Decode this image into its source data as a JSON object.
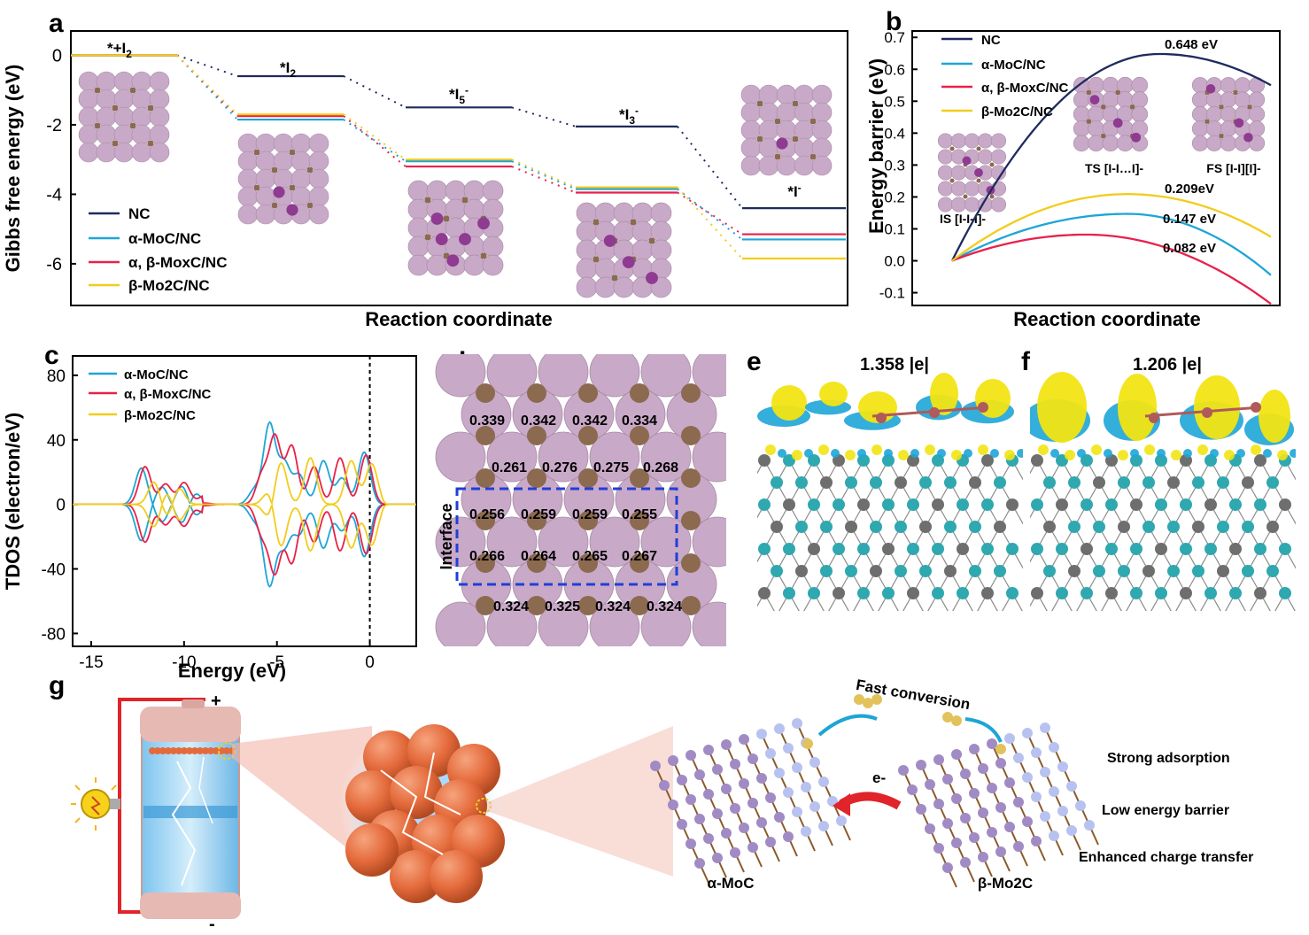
{
  "panels": {
    "a": "a",
    "b": "b",
    "c": "c",
    "d": "d",
    "e": "e",
    "f": "f",
    "g": "g"
  },
  "colors": {
    "NC": "#1f2a5e",
    "aMoC": "#1ea5d6",
    "mix": "#e8214a",
    "bMo2C": "#f2cc1c",
    "mo": "#c9a9c8",
    "c": "#8b6a4f",
    "iodine": "#8e3b91",
    "ti": "#2fa8b0",
    "grey": "#6e6e6e"
  },
  "chart_data": [
    {
      "id": "a",
      "type": "line",
      "xlabel": "Reaction coordinate",
      "ylabel": "Gibbs free energy (eV)",
      "ylim": [
        -7.2,
        0.7
      ],
      "yticks": [
        0,
        -2,
        -4,
        -6
      ],
      "states": [
        "*+I2",
        "*I2",
        "*I5-",
        "*I3-",
        "*I-"
      ],
      "series": [
        {
          "name": "NC",
          "values": [
            0,
            -0.6,
            -1.5,
            -2.05,
            -4.4
          ]
        },
        {
          "name": "α-MoC/NC",
          "values": [
            0,
            -1.85,
            -3.05,
            -3.85,
            -5.3
          ]
        },
        {
          "name": "α, β-MoxC/NC",
          "values": [
            0,
            -1.75,
            -3.2,
            -3.95,
            -5.15
          ]
        },
        {
          "name": "β-Mo2C/NC",
          "values": [
            0,
            -1.7,
            -3.0,
            -3.8,
            -5.85
          ]
        }
      ]
    },
    {
      "id": "b",
      "type": "line",
      "xlabel": "Reaction coordinate",
      "ylabel": "Energy barrier (eV)",
      "ylim": [
        -0.14,
        0.72
      ],
      "yticks": [
        0.7,
        0.6,
        0.5,
        0.4,
        0.3,
        0.2,
        0.1,
        0.0,
        -0.1
      ],
      "series": [
        {
          "name": "NC",
          "peak": 0.648,
          "end": 0.55
        },
        {
          "name": "α-MoC/NC",
          "peak": 0.147,
          "end": -0.045
        },
        {
          "name": "α, β-MoxC/NC",
          "peak": 0.082,
          "end": -0.135
        },
        {
          "name": "β-Mo2C/NC",
          "peak": 0.209,
          "end": 0.075
        }
      ],
      "annotations": [
        "0.648 eV",
        "0.209eV",
        "0.147 eV",
        "0.082 eV"
      ],
      "states": [
        "IS [I-I-I]-",
        "TS [I-I…I]-",
        "FS [I-I][I]-"
      ]
    },
    {
      "id": "c",
      "type": "line",
      "xlabel": "Energy (eV)",
      "ylabel": "TDOS (electron/eV)",
      "xlim": [
        -16,
        2.5
      ],
      "ylim": [
        -88,
        92
      ],
      "xticks": [
        -15,
        -10,
        -5,
        0
      ],
      "yticks": [
        80,
        40,
        0,
        -40,
        -80
      ],
      "series": [
        {
          "name": "α-MoC/NC"
        },
        {
          "name": "α, β-MoxC/NC"
        },
        {
          "name": "β-Mo2C/NC"
        }
      ]
    }
  ],
  "panel_d": {
    "rows": [
      [
        "0.339",
        "0.342",
        "0.342",
        "0.334"
      ],
      [
        "0.261",
        "0.276",
        "0.275",
        "0.268"
      ],
      [
        "0.256",
        "0.259",
        "0.259",
        "0.255"
      ],
      [
        "0.266",
        "0.264",
        "0.265",
        "0.267"
      ],
      [
        "0.324",
        "0.325",
        "0.324",
        "0.324"
      ]
    ],
    "interface_label": "Interface"
  },
  "panel_e": {
    "label": "1.358 |e|"
  },
  "panel_f": {
    "label": "1.206 |e|"
  },
  "panel_g": {
    "plus": "+",
    "minus": "-",
    "fast_conversion": "Fast conversion",
    "electron": "e-",
    "left_label": "α-MoC",
    "right_label": "β-Mo2C",
    "features": [
      "Strong adsorption",
      "Low energy barrier",
      "Enhanced charge transfer"
    ]
  },
  "labels_a": {
    "state0": "*+I2",
    "state1": "*I2",
    "state2": "*I5-",
    "state3": "*I3-",
    "state4": "*I-"
  }
}
